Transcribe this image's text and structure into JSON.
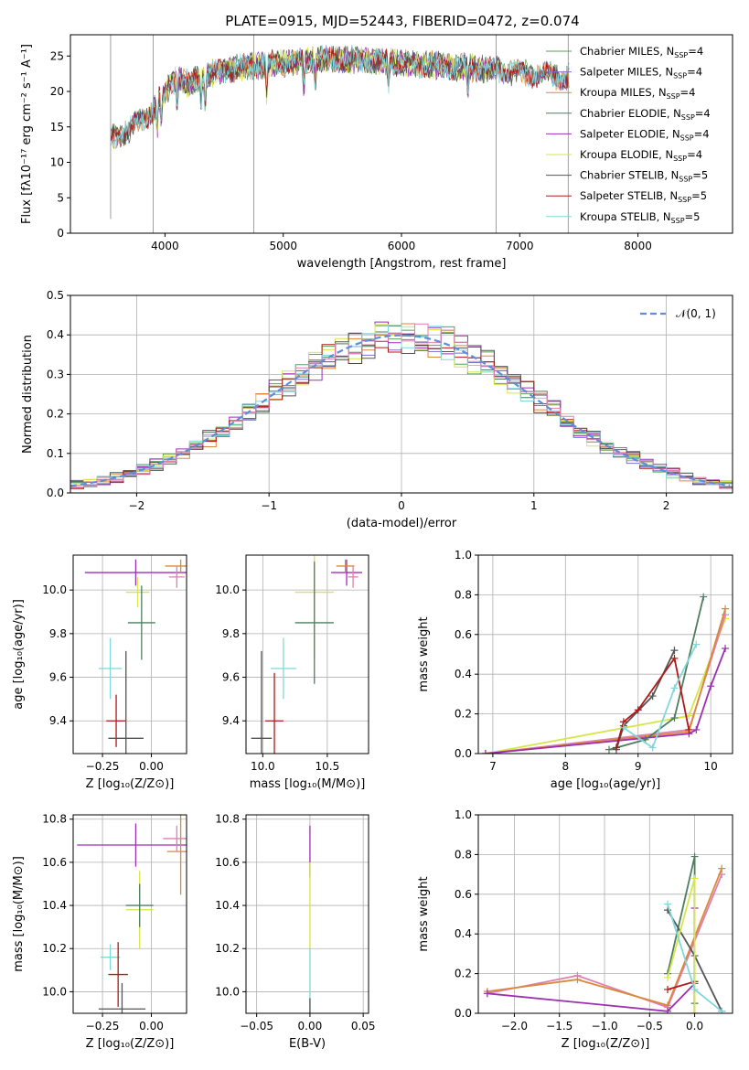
{
  "figure_title": "PLATE=0915, MJD=52443, FIBERID=0472, z=0.074",
  "colors": {
    "chabrier_miles": "#5aa05a",
    "salpeter_miles": "#7a6fd0",
    "kroupa_miles": "#d88a3a",
    "chabrier_elodie": "#4f7d5f",
    "salpeter_elodie": "#9b30b0",
    "kroupa_elodie": "#d6e64a",
    "chabrier_stelib": "#555555",
    "salpeter_stelib": "#b01818",
    "kroupa_stelib": "#7fd8dc",
    "hist_gauss": "#5b8fdc",
    "pink": "#e07fb0",
    "grid": "#b0b0b0"
  },
  "chart_data": [
    {
      "id": "spectrum",
      "type": "line",
      "title": "PLATE=0915, MJD=52443, FIBERID=0472, z=0.074",
      "xlabel": "wavelength [Angstrom, rest frame]",
      "ylabel": "Flux [fλ10⁻¹⁷ erg cm⁻² s⁻¹ A⁻¹]",
      "xlim": [
        3200,
        8800
      ],
      "ylim": [
        0,
        28
      ],
      "xticks": [
        4000,
        5000,
        6000,
        7000,
        8000
      ],
      "yticks": [
        0,
        5,
        10,
        15,
        20,
        25
      ],
      "grid": false,
      "legend_position": "top-right",
      "envelope": {
        "x": [
          3530,
          3600,
          3700,
          3800,
          3900,
          4000,
          4100,
          4200,
          4300,
          4500,
          4700,
          5000,
          5300,
          5600,
          5900,
          6200,
          6500,
          6800,
          7100,
          7400
        ],
        "y": [
          13,
          14,
          14.5,
          16,
          17.5,
          20,
          22,
          21,
          22,
          23,
          23.5,
          24,
          24.5,
          24.5,
          24.2,
          23.8,
          23.5,
          23,
          22.5,
          22
        ]
      },
      "series": [
        {
          "name": "Chabrier MILES, N",
          "sub": "SSP",
          "suffix": "=4",
          "color": "#5aa05a",
          "x_range": [
            3540,
            7420
          ]
        },
        {
          "name": "Salpeter MILES, N",
          "sub": "SSP",
          "suffix": "=4",
          "color": "#7a6fd0",
          "x_range": [
            3540,
            7420
          ]
        },
        {
          "name": "Kroupa MILES, N",
          "sub": "SSP",
          "suffix": "=4",
          "color": "#d88a3a",
          "x_range": [
            3540,
            7420
          ]
        },
        {
          "name": "Chabrier ELODIE, N",
          "sub": "SSP",
          "suffix": "=4",
          "color": "#4f7d5f",
          "x_range": [
            3900,
            6800
          ]
        },
        {
          "name": "Salpeter ELODIE, N",
          "sub": "SSP",
          "suffix": "=4",
          "color": "#9b30b0",
          "x_range": [
            3900,
            6800
          ]
        },
        {
          "name": "Kroupa ELODIE, N",
          "sub": "SSP",
          "suffix": "=4",
          "color": "#d6e64a",
          "x_range": [
            3900,
            6800
          ]
        },
        {
          "name": "Chabrier STELIB, N",
          "sub": "SSP",
          "suffix": "=5",
          "color": "#555555",
          "x_range": [
            3540,
            7420
          ]
        },
        {
          "name": "Salpeter STELIB, N",
          "sub": "SSP",
          "suffix": "=5",
          "color": "#b01818",
          "x_range": [
            3540,
            7420
          ]
        },
        {
          "name": "Kroupa STELIB, N",
          "sub": "SSP",
          "suffix": "=5",
          "color": "#7fd8dc",
          "x_range": [
            3540,
            7420
          ]
        }
      ]
    },
    {
      "id": "residuals",
      "type": "line",
      "xlabel": "(data-model)/error",
      "ylabel": "Normed distribution",
      "xlim": [
        -2.5,
        2.5
      ],
      "ylim": [
        0,
        0.5
      ],
      "xticks": [
        -2,
        -1,
        0,
        1,
        2
      ],
      "yticks": [
        0.0,
        0.1,
        0.2,
        0.3,
        0.4,
        0.5
      ],
      "grid": true,
      "legend_position": "top-right",
      "gaussian": {
        "name": "𝒩(0, 1)",
        "mu": 0,
        "sigma": 1
      },
      "bin_width": 0.1,
      "series_colors": [
        "#5aa05a",
        "#7a6fd0",
        "#d88a3a",
        "#4f7d5f",
        "#9b30b0",
        "#d6e64a",
        "#555555",
        "#b01818",
        "#7fd8dc",
        "#e07fb0"
      ]
    },
    {
      "id": "age_vs_Z",
      "type": "scatter",
      "xlabel": "Z [log₁₀(Z/Z⊙)]",
      "ylabel": "age  [log₁₀(age/yr)]",
      "xlim": [
        -0.4,
        0.18
      ],
      "ylim": [
        9.25,
        10.16
      ],
      "xticks": [
        -0.25,
        0.0
      ],
      "yticks": [
        9.4,
        9.6,
        9.8,
        10.0
      ],
      "grid": true,
      "points": [
        {
          "x": -0.08,
          "y": 10.08,
          "xerr": 0.26,
          "yerr": 0.06,
          "color": "#9b30b0"
        },
        {
          "x": 0.15,
          "y": 10.11,
          "xerr": 0.08,
          "yerr": 0.03,
          "color": "#d88a3a"
        },
        {
          "x": 0.13,
          "y": 10.06,
          "xerr": 0.04,
          "yerr": 0.05,
          "color": "#e07fb0"
        },
        {
          "x": -0.07,
          "y": 9.99,
          "xerr": 0.06,
          "yerr": 0.07,
          "color": "#d6e64a"
        },
        {
          "x": -0.05,
          "y": 9.85,
          "xerr": 0.07,
          "yerr": 0.17,
          "color": "#4f7d5f"
        },
        {
          "x": -0.21,
          "y": 9.64,
          "xerr": 0.06,
          "yerr": 0.14,
          "color": "#7fd8dc"
        },
        {
          "x": -0.18,
          "y": 9.4,
          "xerr": 0.05,
          "yerr": 0.12,
          "color": "#b01818"
        },
        {
          "x": -0.13,
          "y": 9.32,
          "xerr": 0.09,
          "yerr": 0.4,
          "color": "#555555"
        }
      ]
    },
    {
      "id": "age_vs_mass",
      "type": "scatter",
      "xlabel": "mass [log₁₀(M/M⊙)]",
      "ylabel": "",
      "xlim": [
        9.87,
        10.82
      ],
      "ylim": [
        9.25,
        10.16
      ],
      "xticks": [
        10.0,
        10.5
      ],
      "yticks": [
        9.4,
        9.6,
        9.8,
        10.0
      ],
      "grid": true,
      "points": [
        {
          "x": 10.65,
          "y": 10.08,
          "xerr": 0.12,
          "yerr": 0.06,
          "color": "#9b30b0"
        },
        {
          "x": 10.64,
          "y": 10.11,
          "xerr": 0.07,
          "yerr": 0.03,
          "color": "#d88a3a"
        },
        {
          "x": 10.7,
          "y": 10.06,
          "xerr": 0.04,
          "yerr": 0.05,
          "color": "#e07fb0"
        },
        {
          "x": 10.4,
          "y": 9.99,
          "xerr": 0.15,
          "yerr": 0.3,
          "color": "#d6e64a"
        },
        {
          "x": 10.4,
          "y": 9.85,
          "xerr": 0.15,
          "yerr": 0.28,
          "color": "#4f7d5f"
        },
        {
          "x": 10.16,
          "y": 9.64,
          "xerr": 0.1,
          "yerr": 0.14,
          "color": "#7fd8dc"
        },
        {
          "x": 10.09,
          "y": 9.4,
          "xerr": 0.07,
          "yerr": 0.22,
          "color": "#b01818"
        },
        {
          "x": 9.99,
          "y": 9.32,
          "xerr": 0.08,
          "yerr": 0.4,
          "color": "#555555"
        }
      ]
    },
    {
      "id": "weight_vs_age",
      "type": "line",
      "xlabel": "age  [log₁₀(age/yr)]",
      "ylabel": "mass weight",
      "xlim": [
        6.8,
        10.3
      ],
      "ylim": [
        0,
        1.0
      ],
      "xticks": [
        7,
        8,
        9,
        10
      ],
      "yticks": [
        0.0,
        0.2,
        0.4,
        0.6,
        0.8,
        1.0
      ],
      "grid": true,
      "series": [
        {
          "color": "#d6e64a",
          "x": [
            6.9,
            9.7,
            10.2
          ],
          "y": [
            0.0,
            0.19,
            0.68
          ]
        },
        {
          "color": "#e07fb0",
          "x": [
            6.9,
            9.7,
            10.2
          ],
          "y": [
            0.0,
            0.12,
            0.7
          ]
        },
        {
          "color": "#d88a3a",
          "x": [
            6.9,
            9.7,
            10.2
          ],
          "y": [
            0.0,
            0.11,
            0.73
          ]
        },
        {
          "color": "#9b30b0",
          "x": [
            6.9,
            9.7,
            9.8,
            10.0,
            10.2
          ],
          "y": [
            0.0,
            0.1,
            0.12,
            0.34,
            0.53
          ]
        },
        {
          "color": "#4f7d5f",
          "x": [
            8.6,
            9.1,
            9.5,
            9.9
          ],
          "y": [
            0.02,
            0.07,
            0.18,
            0.79
          ]
        },
        {
          "color": "#555555",
          "x": [
            8.7,
            8.8,
            9.2,
            9.5
          ],
          "y": [
            0.02,
            0.14,
            0.29,
            0.52
          ]
        },
        {
          "color": "#b01818",
          "x": [
            8.7,
            8.8,
            9.0,
            9.5,
            9.7
          ],
          "y": [
            0.03,
            0.16,
            0.22,
            0.48,
            0.12
          ]
        },
        {
          "color": "#7fd8dc",
          "x": [
            8.8,
            9.2,
            9.5,
            9.8
          ],
          "y": [
            0.13,
            0.03,
            0.33,
            0.55
          ]
        }
      ]
    },
    {
      "id": "mass_vs_Z",
      "type": "scatter",
      "xlabel": "Z [log₁₀(Z/Z⊙)]",
      "ylabel": "mass [log₁₀(M/M⊙)]",
      "xlim": [
        -0.4,
        0.18
      ],
      "ylim": [
        9.9,
        10.82
      ],
      "xticks": [
        -0.25,
        0.0
      ],
      "yticks": [
        10.0,
        10.2,
        10.4,
        10.6,
        10.8
      ],
      "grid": true,
      "points": [
        {
          "x": -0.08,
          "y": 10.68,
          "xerr": 0.3,
          "yerr": 0.1,
          "color": "#9b30b0"
        },
        {
          "x": 0.15,
          "y": 10.65,
          "xerr": 0.07,
          "yerr": 0.2,
          "color": "#d88a3a"
        },
        {
          "x": 0.13,
          "y": 10.71,
          "xerr": 0.07,
          "yerr": 0.06,
          "color": "#e07fb0"
        },
        {
          "x": -0.06,
          "y": 10.38,
          "xerr": 0.07,
          "yerr": 0.18,
          "color": "#d6e64a"
        },
        {
          "x": -0.06,
          "y": 10.4,
          "xerr": 0.07,
          "yerr": 0.1,
          "color": "#4f7d5f"
        },
        {
          "x": -0.21,
          "y": 10.16,
          "xerr": 0.05,
          "yerr": 0.06,
          "color": "#7fd8dc"
        },
        {
          "x": -0.17,
          "y": 10.08,
          "xerr": 0.05,
          "yerr": 0.15,
          "color": "#b01818"
        },
        {
          "x": -0.15,
          "y": 9.92,
          "xerr": 0.12,
          "yerr": 0.12,
          "color": "#555555"
        }
      ]
    },
    {
      "id": "mass_vs_ebv",
      "type": "scatter",
      "xlabel": "E(B-V)",
      "ylabel": "",
      "xlim": [
        -0.06,
        0.055
      ],
      "ylim": [
        9.9,
        10.82
      ],
      "xticks": [
        -0.05,
        0.0,
        0.05
      ],
      "yticks": [
        10.0,
        10.2,
        10.4,
        10.6,
        10.8
      ],
      "grid": true,
      "points": [
        {
          "x": 0.0,
          "y": 10.65,
          "xerr": 0.0,
          "yerr": 0.12,
          "color": "#9b30b0"
        },
        {
          "x": 0.0,
          "y": 10.4,
          "xerr": 0.0,
          "yerr": 0.2,
          "color": "#d6e64a"
        },
        {
          "x": 0.0,
          "y": 10.0,
          "xerr": 0.0,
          "yerr": 0.2,
          "color": "#7fd8dc"
        },
        {
          "x": 0.0,
          "y": 9.92,
          "xerr": 0.0,
          "yerr": 0.05,
          "color": "#555555"
        }
      ]
    },
    {
      "id": "weight_vs_Z",
      "type": "line",
      "xlabel": "Z [log₁₀(Z/Z⊙)]",
      "ylabel": "mass weight",
      "xlim": [
        -2.4,
        0.42
      ],
      "ylim": [
        0,
        1.0
      ],
      "xticks": [
        -2.0,
        -1.5,
        -1.0,
        -0.5,
        0.0
      ],
      "yticks": [
        0.0,
        0.2,
        0.4,
        0.6,
        0.8,
        1.0
      ],
      "grid": true,
      "series": [
        {
          "color": "#e07fb0",
          "x": [
            -2.3,
            -1.3,
            -0.3,
            0.3
          ],
          "y": [
            0.1,
            0.19,
            0.03,
            0.7
          ]
        },
        {
          "color": "#d88a3a",
          "x": [
            -2.3,
            -1.3,
            -0.3,
            0.3
          ],
          "y": [
            0.11,
            0.17,
            0.04,
            0.73
          ]
        },
        {
          "color": "#9b30b0",
          "x": [
            -2.3,
            -0.3,
            0.0,
            0.0
          ],
          "y": [
            0.1,
            0.01,
            0.15,
            0.53
          ]
        },
        {
          "color": "#4f7d5f",
          "x": [
            -0.3,
            0.0,
            0.0
          ],
          "y": [
            0.2,
            0.79,
            0.05
          ]
        },
        {
          "color": "#555555",
          "x": [
            -0.3,
            0.0,
            0.3
          ],
          "y": [
            0.52,
            0.29,
            0.01
          ]
        },
        {
          "color": "#b01818",
          "x": [
            -0.3,
            0.0,
            0.0
          ],
          "y": [
            0.12,
            0.16,
            0.0
          ]
        },
        {
          "color": "#d6e64a",
          "x": [
            -0.3,
            0.0,
            0.0
          ],
          "y": [
            0.18,
            0.68,
            0.0
          ]
        },
        {
          "color": "#7fd8dc",
          "x": [
            -0.3,
            0.0,
            0.3
          ],
          "y": [
            0.55,
            0.12,
            0.01
          ]
        }
      ]
    }
  ]
}
